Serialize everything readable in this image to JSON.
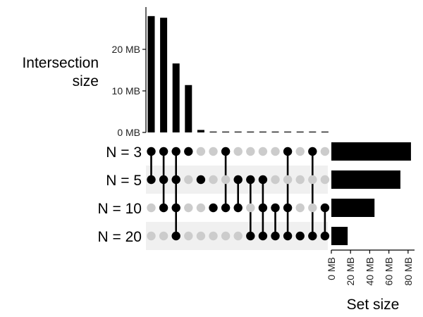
{
  "chart_data": {
    "type": "upset",
    "sets": [
      "N = 3",
      "N = 5",
      "N = 10",
      "N = 20"
    ],
    "set_sizes_mb": [
      83,
      72,
      45,
      17
    ],
    "intersections": [
      {
        "sets": [
          "N = 3",
          "N = 5"
        ],
        "size_mb": 28
      },
      {
        "sets": [
          "N = 3",
          "N = 5",
          "N = 10"
        ],
        "size_mb": 27.6
      },
      {
        "sets": [
          "N = 3",
          "N = 5",
          "N = 10",
          "N = 20"
        ],
        "size_mb": 16.6
      },
      {
        "sets": [
          "N = 3"
        ],
        "size_mb": 11.4
      },
      {
        "sets": [
          "N = 5"
        ],
        "size_mb": 0.6
      },
      {
        "sets": [
          "N = 10"
        ],
        "size_mb": 0.1
      },
      {
        "sets": [
          "N = 3",
          "N = 10"
        ],
        "size_mb": 0.1
      },
      {
        "sets": [
          "N = 5",
          "N = 10"
        ],
        "size_mb": 0.1
      },
      {
        "sets": [
          "N = 5",
          "N = 20"
        ],
        "size_mb": 0.1
      },
      {
        "sets": [
          "N = 5",
          "N = 10",
          "N = 20"
        ],
        "size_mb": 0.1
      },
      {
        "sets": [
          "N = 10",
          "N = 20"
        ],
        "size_mb": 0.1
      },
      {
        "sets": [
          "N = 3",
          "N = 10",
          "N = 20"
        ],
        "size_mb": 0.1
      },
      {
        "sets": [
          "N = 20"
        ],
        "size_mb": 0.1
      },
      {
        "sets": [
          "N = 3",
          "N = 20"
        ],
        "size_mb": 0.1
      },
      {
        "sets": [
          "N = 10",
          "N = 20"
        ],
        "size_mb": 0.1
      }
    ],
    "intersection_axis": {
      "label_lines": [
        "Intersection",
        "size"
      ],
      "ticks": [
        0,
        10,
        20
      ],
      "tick_labels": [
        "0 MB",
        "10 MB",
        "20 MB"
      ],
      "ylim": [
        0,
        29.5
      ]
    },
    "set_size_axis": {
      "label": "Set size",
      "ticks": [
        0,
        20,
        40,
        60,
        80
      ],
      "tick_labels": [
        "0 MB",
        "20 MB",
        "40 MB",
        "60 MB",
        "80 MB"
      ],
      "xlim": [
        0,
        86
      ]
    },
    "colors": {
      "bar": "#000000",
      "dot_active": "#000000",
      "dot_inactive": "#cccccc",
      "row_stripe": "#f0f0f0"
    }
  }
}
